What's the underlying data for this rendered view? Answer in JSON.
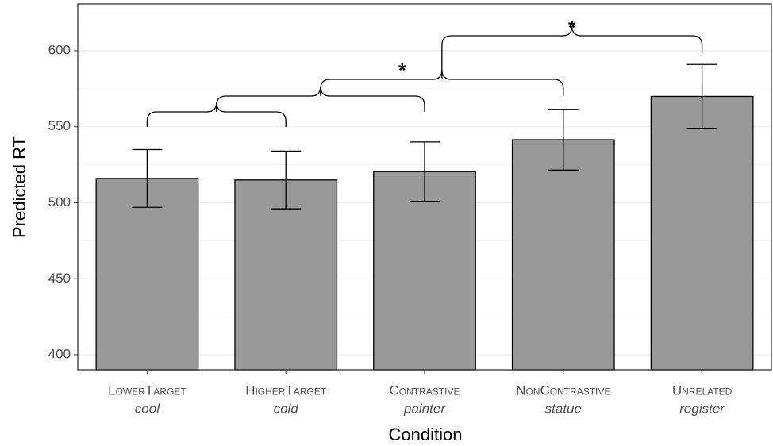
{
  "chart_data": {
    "type": "bar",
    "categories": [
      "LowerTarget",
      "HigherTarget",
      "Contrastive",
      "NonContrastive",
      "Unrelated"
    ],
    "examples": [
      "cool",
      "cold",
      "painter",
      "statue",
      "register"
    ],
    "values": [
      516,
      515,
      520.5,
      541.5,
      570
    ],
    "errors": [
      19,
      19,
      19.5,
      20,
      21
    ],
    "color": "#999999",
    "x_label": "Condition",
    "y_label": "Predicted RT",
    "ylim": [
      390.1,
      630.8
    ],
    "yticks": [
      400,
      450,
      500,
      550,
      600
    ],
    "grid": true,
    "annotations": [
      "*",
      "*"
    ]
  }
}
